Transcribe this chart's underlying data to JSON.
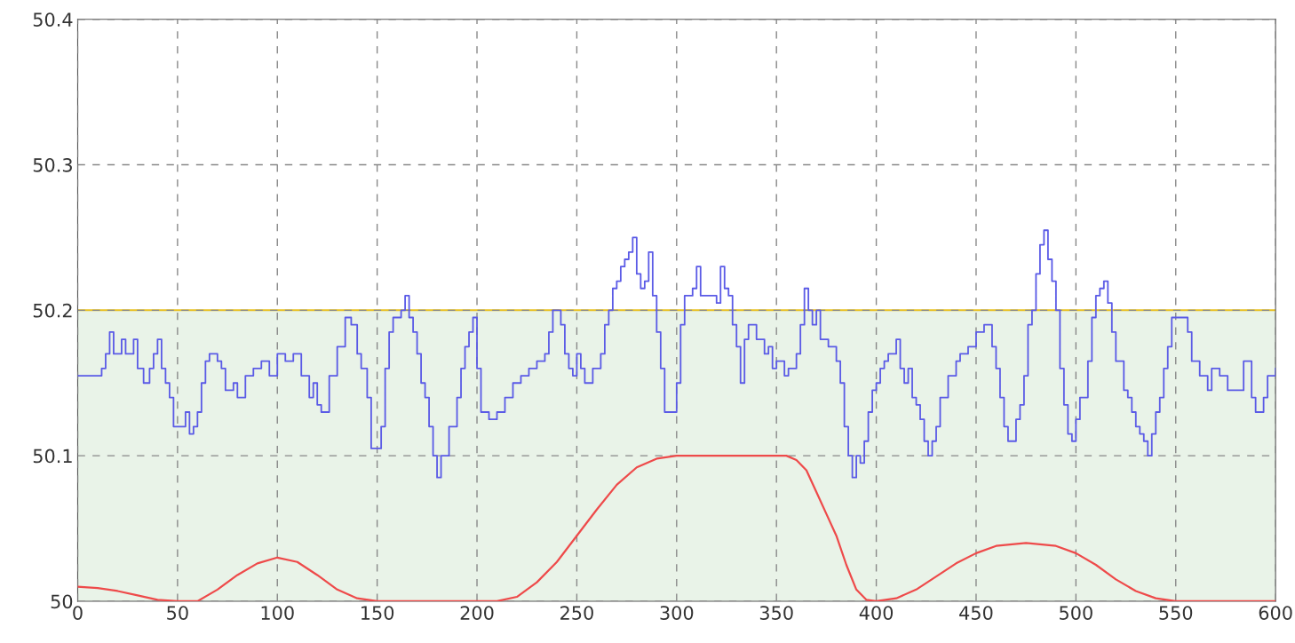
{
  "chart_data": {
    "type": "step",
    "xlim": [
      0,
      600
    ],
    "ylim": [
      50,
      50.4
    ],
    "xticks": [
      0,
      50,
      100,
      150,
      200,
      250,
      300,
      350,
      400,
      450,
      500,
      550,
      600
    ],
    "yticks": [
      {
        "value": 50,
        "label": "50"
      },
      50.1,
      50.2,
      50.3,
      50.4
    ],
    "grid": true,
    "legend": false,
    "line_style": "solid",
    "marker": "none",
    "bands": [
      {
        "axis": "y",
        "from": 50,
        "to": 50.2,
        "color": "#e9f3e8"
      }
    ],
    "ref_lines": [
      {
        "axis": "y",
        "value": 50.2,
        "color": "#e8c020",
        "line_style": "solid"
      }
    ],
    "series": [
      {
        "color": "#5a5ae6",
        "x": [
          0,
          10,
          12,
          14,
          16,
          18,
          22,
          24,
          28,
          30,
          33,
          36,
          38,
          40,
          42,
          44,
          46,
          48,
          52,
          54,
          56,
          58,
          60,
          62,
          64,
          66,
          70,
          72,
          74,
          78,
          80,
          84,
          88,
          92,
          96,
          100,
          104,
          108,
          112,
          116,
          118,
          120,
          122,
          126,
          130,
          134,
          137,
          140,
          142,
          145,
          147,
          150,
          152,
          154,
          156,
          158,
          162,
          164,
          166,
          168,
          170,
          172,
          174,
          176,
          178,
          180,
          182,
          186,
          190,
          192,
          194,
          196,
          198,
          200,
          202,
          206,
          210,
          214,
          218,
          222,
          226,
          230,
          234,
          236,
          238,
          240,
          242,
          244,
          246,
          248,
          250,
          252,
          254,
          258,
          262,
          264,
          266,
          268,
          270,
          272,
          274,
          276,
          278,
          280,
          282,
          284,
          286,
          288,
          290,
          292,
          294,
          298,
          300,
          302,
          304,
          308,
          310,
          312,
          316,
          320,
          322,
          324,
          326,
          328,
          330,
          332,
          334,
          336,
          340,
          344,
          346,
          348,
          350,
          352,
          354,
          356,
          360,
          362,
          364,
          366,
          368,
          370,
          372,
          376,
          380,
          382,
          384,
          386,
          388,
          390,
          392,
          394,
          396,
          398,
          400,
          402,
          404,
          406,
          410,
          412,
          414,
          416,
          418,
          420,
          422,
          424,
          426,
          428,
          430,
          432,
          436,
          440,
          442,
          446,
          450,
          454,
          458,
          460,
          462,
          464,
          466,
          470,
          472,
          474,
          476,
          478,
          480,
          482,
          484,
          486,
          488,
          490,
          492,
          494,
          496,
          498,
          500,
          502,
          506,
          508,
          510,
          512,
          514,
          516,
          518,
          520,
          524,
          526,
          528,
          530,
          532,
          534,
          536,
          538,
          540,
          542,
          544,
          546,
          548,
          552,
          556,
          558,
          562,
          566,
          568,
          572,
          576,
          580,
          584,
          586,
          588,
          590,
          594,
          596,
          600
        ],
        "values": [
          50.155,
          50.155,
          50.16,
          50.17,
          50.185,
          50.17,
          50.18,
          50.17,
          50.18,
          50.16,
          50.15,
          50.16,
          50.17,
          50.18,
          50.16,
          50.15,
          50.14,
          50.12,
          50.12,
          50.13,
          50.115,
          50.12,
          50.13,
          50.15,
          50.165,
          50.17,
          50.165,
          50.16,
          50.145,
          50.15,
          50.14,
          50.155,
          50.16,
          50.165,
          50.155,
          50.17,
          50.165,
          50.17,
          50.155,
          50.14,
          50.15,
          50.135,
          50.13,
          50.155,
          50.175,
          50.195,
          50.19,
          50.17,
          50.16,
          50.14,
          50.105,
          50.105,
          50.12,
          50.16,
          50.185,
          50.195,
          50.2,
          50.21,
          50.195,
          50.185,
          50.17,
          50.15,
          50.14,
          50.12,
          50.1,
          50.085,
          50.1,
          50.12,
          50.14,
          50.16,
          50.175,
          50.185,
          50.195,
          50.16,
          50.13,
          50.125,
          50.13,
          50.14,
          50.15,
          50.155,
          50.16,
          50.165,
          50.17,
          50.185,
          50.2,
          50.2,
          50.19,
          50.17,
          50.16,
          50.155,
          50.17,
          50.16,
          50.15,
          50.16,
          50.17,
          50.19,
          50.2,
          50.215,
          50.22,
          50.23,
          50.235,
          50.24,
          50.25,
          50.225,
          50.215,
          50.22,
          50.24,
          50.21,
          50.185,
          50.16,
          50.13,
          50.13,
          50.15,
          50.19,
          50.21,
          50.215,
          50.23,
          50.21,
          50.21,
          50.205,
          50.23,
          50.215,
          50.21,
          50.19,
          50.175,
          50.15,
          50.18,
          50.19,
          50.18,
          50.17,
          50.175,
          50.16,
          50.165,
          50.165,
          50.155,
          50.16,
          50.17,
          50.19,
          50.215,
          50.2,
          50.19,
          50.2,
          50.18,
          50.175,
          50.165,
          50.15,
          50.12,
          50.1,
          50.085,
          50.1,
          50.095,
          50.11,
          50.13,
          50.145,
          50.15,
          50.16,
          50.165,
          50.17,
          50.18,
          50.16,
          50.15,
          50.16,
          50.14,
          50.135,
          50.125,
          50.11,
          50.1,
          50.11,
          50.12,
          50.14,
          50.155,
          50.165,
          50.17,
          50.175,
          50.185,
          50.19,
          50.175,
          50.16,
          50.14,
          50.12,
          50.11,
          50.125,
          50.135,
          50.155,
          50.19,
          50.2,
          50.225,
          50.245,
          50.255,
          50.235,
          50.22,
          50.2,
          50.16,
          50.135,
          50.115,
          50.11,
          50.125,
          50.14,
          50.165,
          50.195,
          50.21,
          50.215,
          50.22,
          50.205,
          50.185,
          50.165,
          50.145,
          50.14,
          50.13,
          50.12,
          50.115,
          50.11,
          50.1,
          50.115,
          50.13,
          50.14,
          50.16,
          50.175,
          50.195,
          50.195,
          50.185,
          50.165,
          50.155,
          50.145,
          50.16,
          50.155,
          50.145,
          50.145,
          50.165,
          50.165,
          50.14,
          50.13,
          50.14,
          50.155,
          50.16
        ]
      },
      {
        "type": "line",
        "color": "#ee4a4a",
        "x": [
          0,
          10,
          20,
          30,
          40,
          50,
          60,
          70,
          80,
          90,
          100,
          110,
          120,
          130,
          140,
          150,
          210,
          220,
          230,
          240,
          250,
          260,
          270,
          280,
          290,
          300,
          355,
          360,
          365,
          370,
          375,
          380,
          385,
          390,
          395,
          400,
          410,
          420,
          430,
          440,
          450,
          460,
          475,
          490,
          500,
          510,
          520,
          530,
          540,
          550,
          600
        ],
        "values": [
          50.01,
          50.009,
          50.007,
          50.004,
          50.001,
          50,
          50,
          50.008,
          50.018,
          50.026,
          50.03,
          50.027,
          50.018,
          50.008,
          50.002,
          50,
          50,
          50.003,
          50.013,
          50.027,
          50.045,
          50.063,
          50.08,
          50.092,
          50.098,
          50.1,
          50.1,
          50.097,
          50.09,
          50.075,
          50.06,
          50.045,
          50.025,
          50.008,
          50.001,
          50,
          50.002,
          50.008,
          50.017,
          50.026,
          50.033,
          50.038,
          50.04,
          50.038,
          50.033,
          50.025,
          50.015,
          50.007,
          50.002,
          50,
          50
        ]
      }
    ]
  }
}
